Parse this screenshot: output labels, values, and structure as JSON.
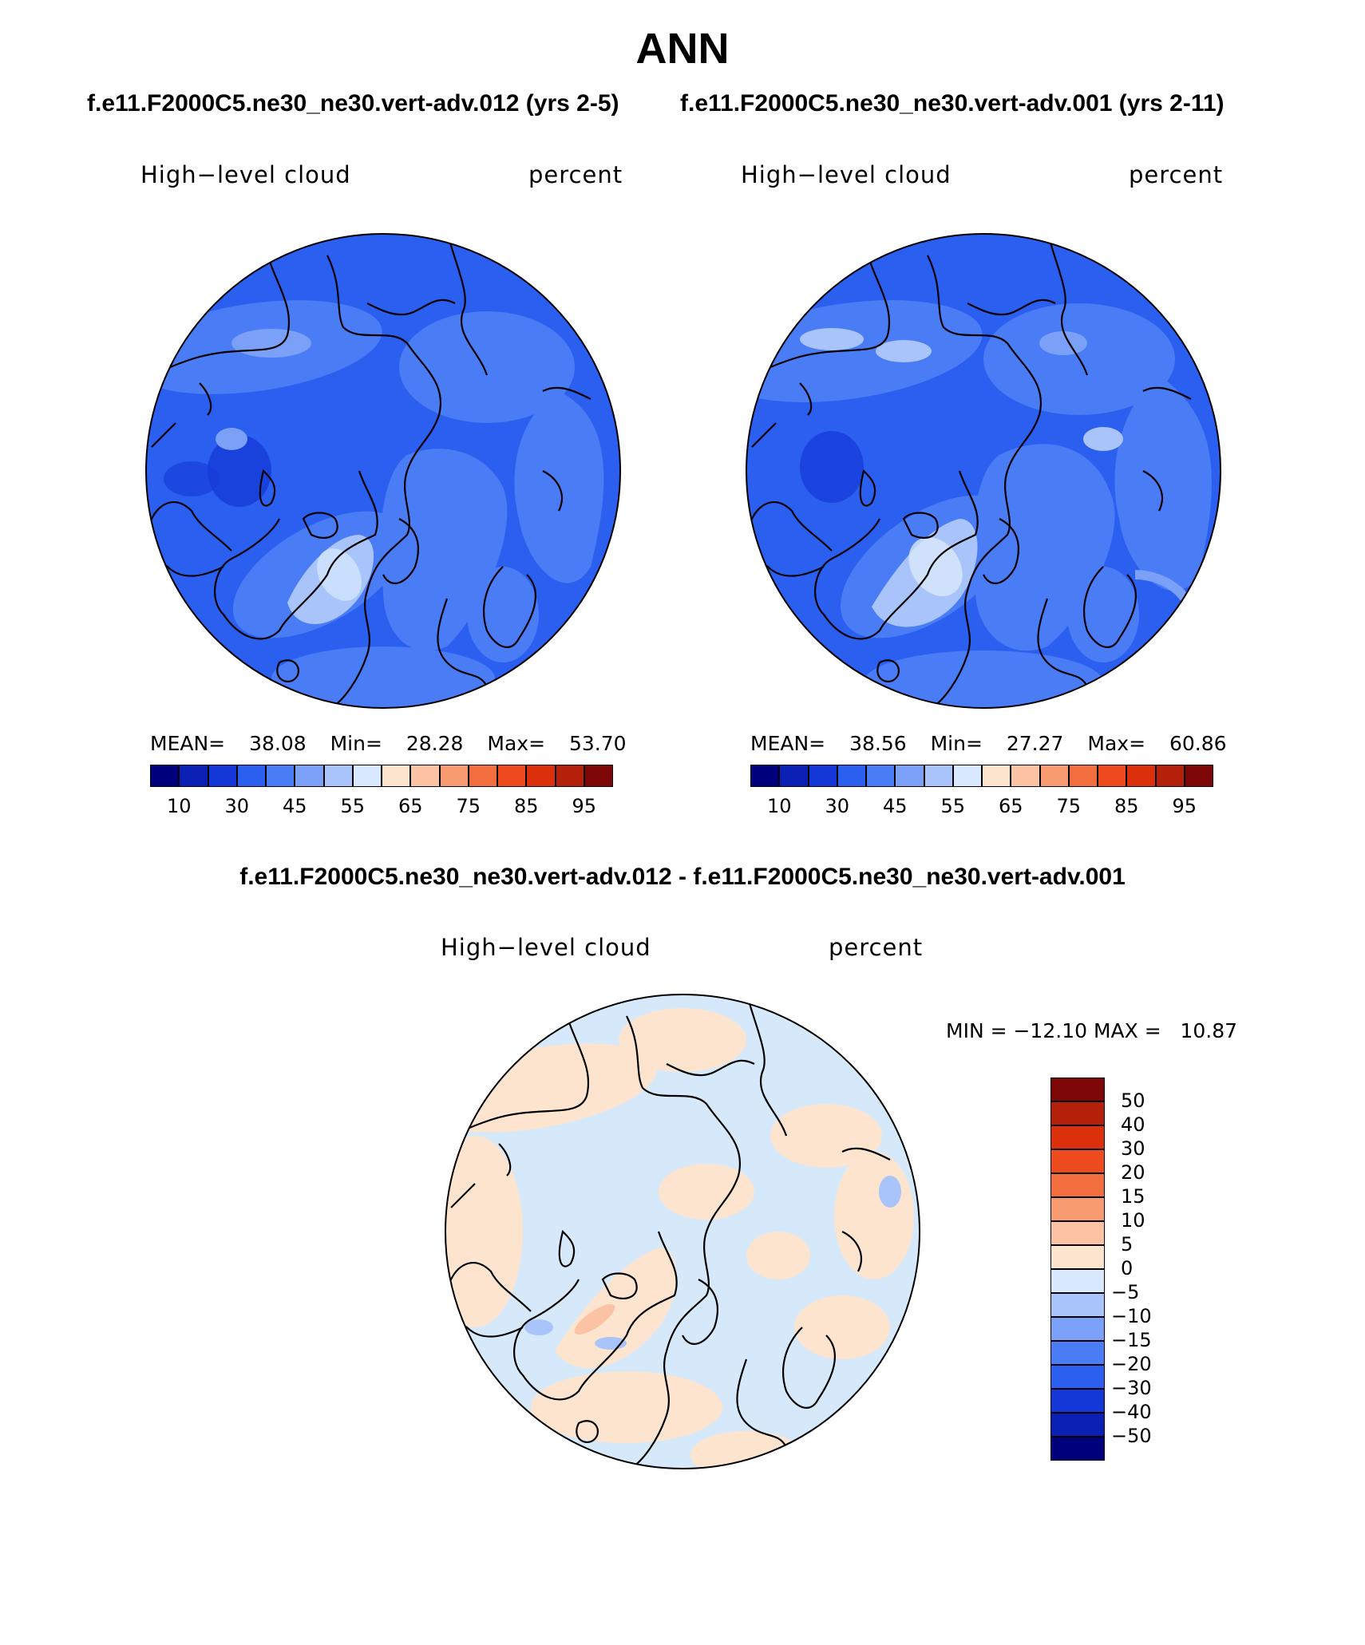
{
  "header": {
    "title": "ANN",
    "subtitle_left": "f.e11.F2000C5.ne30_ne30.vert-adv.012 (yrs 2-5)",
    "subtitle_right": "f.e11.F2000C5.ne30_ne30.vert-adv.001 (yrs 2-11)",
    "diff_title": "f.e11.F2000C5.ne30_ne30.vert-adv.012 - f.e11.F2000C5.ne30_ne30.vert-adv.001"
  },
  "panels": [
    {
      "variable": "High−level cloud",
      "units": "percent",
      "mean_label": "MEAN=",
      "mean": "38.08",
      "min_label": "Min=",
      "min": "28.28",
      "max_label": "Max=",
      "max": "53.70",
      "base_color": "#2a5ff0"
    },
    {
      "variable": "High−level cloud",
      "units": "percent",
      "mean_label": "MEAN=",
      "mean": "38.56",
      "min_label": "Min=",
      "min": "27.27",
      "max_label": "Max=",
      "max": "60.86",
      "base_color": "#2a5ff0"
    },
    {
      "variable": "High−level cloud",
      "units": "percent",
      "minmax": "MIN = −12.10 MAX =   10.87",
      "base_color": "#d6e9fb"
    }
  ],
  "colorbar_horizontal": {
    "colors": [
      "#00007d",
      "#0a1fb4",
      "#1438d7",
      "#2a5ff0",
      "#4a7cf5",
      "#7aa0f7",
      "#a9c4fa",
      "#d9e9fd",
      "#fde4cf",
      "#fbc3a3",
      "#f79a70",
      "#f36e3f",
      "#ee4b1f",
      "#dc2f0c",
      "#b5200a",
      "#7d0707"
    ],
    "labels": [
      "10",
      "30",
      "45",
      "55",
      "65",
      "75",
      "85",
      "95"
    ]
  },
  "colorbar_vertical": {
    "colors": [
      "#7d0707",
      "#b5200a",
      "#dc2f0c",
      "#ee4b1f",
      "#f36e3f",
      "#f79a70",
      "#fbc3a3",
      "#fde4cf",
      "#d9e9fd",
      "#a9c4fa",
      "#7aa0f7",
      "#4a7cf5",
      "#2a5ff0",
      "#1438d7",
      "#0a1fb4",
      "#00007d"
    ],
    "labels": [
      "50",
      "40",
      "30",
      "20",
      "15",
      "10",
      "5",
      "0",
      "−5",
      "−10",
      "−15",
      "−20",
      "−30",
      "−40",
      "−50"
    ]
  }
}
